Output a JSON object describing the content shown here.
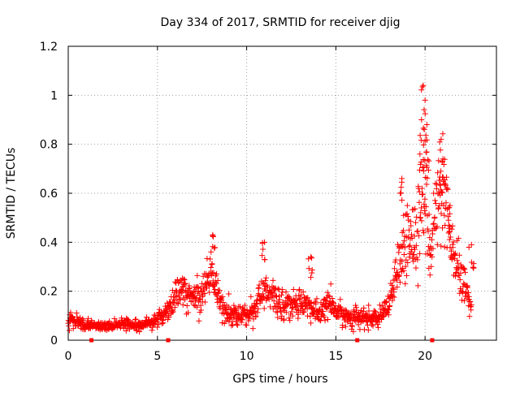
{
  "chart_data": {
    "type": "scatter",
    "title": "Day 334 of 2017, SRMTID for receiver djig",
    "xlabel": "GPS time / hours",
    "ylabel": "SRMTID / TECUs",
    "xlim": [
      0,
      24
    ],
    "ylim": [
      0,
      1.2
    ],
    "grid": true,
    "marker": "+",
    "marker_color": "#ff0000",
    "frame_color": "#000000",
    "grid_color": "#a0a0a0",
    "x_ticks": [
      0,
      5,
      10,
      15,
      20
    ],
    "x_tick_labels": [
      "0",
      "5",
      "10",
      "15",
      "20"
    ],
    "y_ticks": [
      0,
      0.2,
      0.4,
      0.6,
      0.8,
      1.0,
      1.2
    ],
    "y_tick_labels": [
      "0",
      "0.2",
      "0.4",
      "0.6",
      "0.8",
      "1",
      "1.2"
    ],
    "x_axis_markers": [
      1.3,
      5.6,
      16.2,
      20.4
    ],
    "envelope": [
      [
        0.0,
        0.09,
        0.05
      ],
      [
        0.5,
        0.075,
        0.03
      ],
      [
        1.0,
        0.065,
        0.025
      ],
      [
        1.5,
        0.06,
        0.02
      ],
      [
        2.0,
        0.055,
        0.02
      ],
      [
        2.5,
        0.06,
        0.02
      ],
      [
        3.0,
        0.07,
        0.025
      ],
      [
        3.5,
        0.065,
        0.02
      ],
      [
        4.0,
        0.065,
        0.02
      ],
      [
        4.5,
        0.07,
        0.025
      ],
      [
        5.0,
        0.08,
        0.03
      ],
      [
        5.5,
        0.12,
        0.05
      ],
      [
        6.0,
        0.18,
        0.08
      ],
      [
        6.5,
        0.2,
        0.08
      ],
      [
        7.0,
        0.17,
        0.07
      ],
      [
        7.5,
        0.2,
        0.08
      ],
      [
        8.0,
        0.27,
        0.1
      ],
      [
        8.3,
        0.22,
        0.09
      ],
      [
        8.7,
        0.13,
        0.06
      ],
      [
        9.0,
        0.11,
        0.05
      ],
      [
        9.5,
        0.1,
        0.05
      ],
      [
        10.0,
        0.1,
        0.05
      ],
      [
        10.5,
        0.14,
        0.06
      ],
      [
        11.0,
        0.2,
        0.09
      ],
      [
        11.5,
        0.17,
        0.08
      ],
      [
        12.0,
        0.15,
        0.07
      ],
      [
        12.5,
        0.14,
        0.06
      ],
      [
        13.0,
        0.16,
        0.07
      ],
      [
        13.5,
        0.14,
        0.06
      ],
      [
        14.0,
        0.1,
        0.05
      ],
      [
        14.5,
        0.15,
        0.07
      ],
      [
        15.0,
        0.12,
        0.05
      ],
      [
        15.5,
        0.1,
        0.05
      ],
      [
        16.0,
        0.09,
        0.05
      ],
      [
        16.5,
        0.09,
        0.04
      ],
      [
        17.0,
        0.09,
        0.04
      ],
      [
        17.5,
        0.09,
        0.04
      ],
      [
        18.0,
        0.14,
        0.06
      ],
      [
        18.5,
        0.3,
        0.12
      ],
      [
        19.0,
        0.4,
        0.15
      ],
      [
        19.5,
        0.45,
        0.2
      ],
      [
        20.0,
        0.6,
        0.28
      ],
      [
        20.3,
        0.4,
        0.2
      ],
      [
        20.7,
        0.55,
        0.2
      ],
      [
        21.0,
        0.6,
        0.2
      ],
      [
        21.5,
        0.35,
        0.15
      ],
      [
        22.0,
        0.25,
        0.1
      ],
      [
        22.6,
        0.15,
        0.07
      ]
    ],
    "peaks": [
      [
        8.1,
        0.43
      ],
      [
        11.0,
        0.4
      ],
      [
        13.6,
        0.34
      ],
      [
        19.9,
        1.04
      ],
      [
        20.0,
        0.98
      ],
      [
        19.8,
        0.9
      ],
      [
        20.1,
        0.88
      ],
      [
        20.9,
        0.82
      ],
      [
        18.7,
        0.66
      ],
      [
        21.0,
        0.74
      ],
      [
        21.4,
        0.55
      ],
      [
        22.6,
        0.39
      ]
    ],
    "x_start": 0.0,
    "x_end": 22.6,
    "x_step": 0.0167,
    "random_seed": 334
  }
}
